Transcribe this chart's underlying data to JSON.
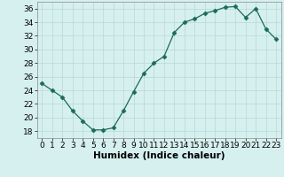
{
  "xlabel": "Humidex (Indice chaleur)",
  "x": [
    0,
    1,
    2,
    3,
    4,
    5,
    6,
    7,
    8,
    9,
    10,
    11,
    12,
    13,
    14,
    15,
    16,
    17,
    18,
    19,
    20,
    21,
    22,
    23
  ],
  "y": [
    25.0,
    24.0,
    23.0,
    21.0,
    19.5,
    18.2,
    18.2,
    18.5,
    21.0,
    23.8,
    26.5,
    28.0,
    29.0,
    32.5,
    34.0,
    34.5,
    35.3,
    35.7,
    36.2,
    36.3,
    34.7,
    36.0,
    33.0,
    31.5
  ],
  "line_color": "#1a6b5a",
  "marker": "D",
  "marker_size": 2.5,
  "bg_color": "#d6f0ef",
  "grid_color": "#b8d8d5",
  "tick_label_fontsize": 6.5,
  "xlabel_fontsize": 7.5,
  "ylim": [
    17,
    37
  ],
  "yticks": [
    18,
    20,
    22,
    24,
    26,
    28,
    30,
    32,
    34,
    36
  ]
}
